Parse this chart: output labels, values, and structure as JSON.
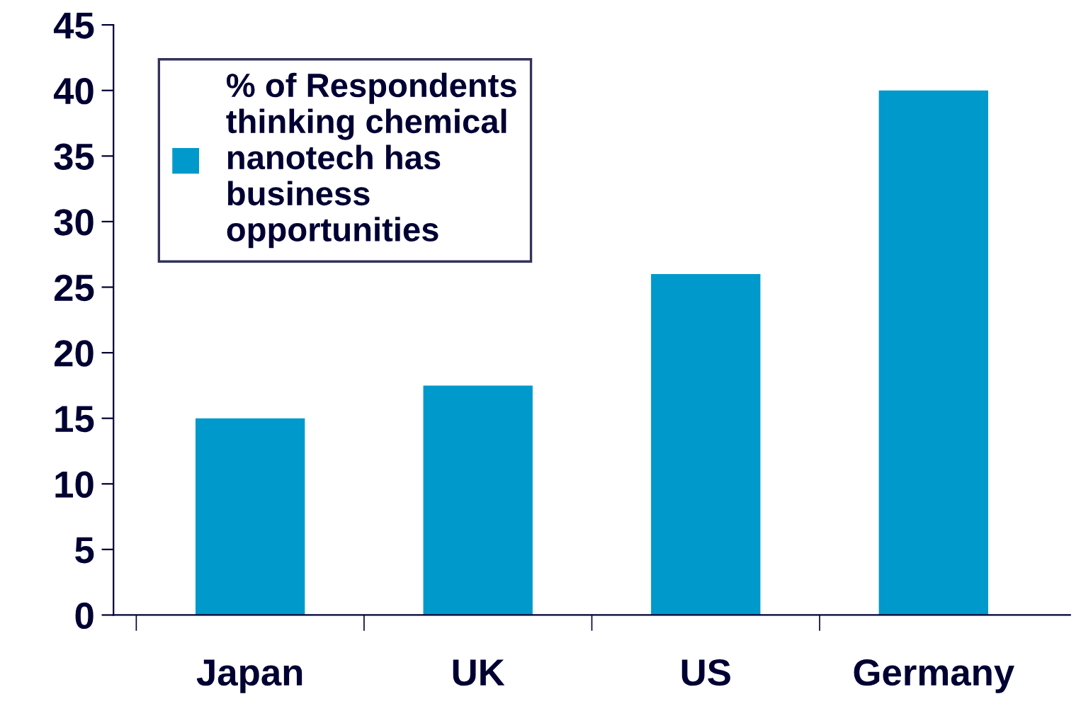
{
  "chart_data": {
    "type": "bar",
    "categories": [
      "Japan",
      "UK",
      "US",
      "Germany"
    ],
    "series": [
      {
        "name": "% of Respondents\nthinking chemical\nnanotech has\nbusiness\nopportunities",
        "color": "#0099cc",
        "values": [
          15,
          17.5,
          26,
          40
        ]
      }
    ],
    "ylim": [
      0,
      45
    ],
    "yticks": [
      0,
      5,
      10,
      15,
      20,
      25,
      30,
      35,
      40,
      45
    ],
    "grid": false,
    "legend": "top left"
  }
}
